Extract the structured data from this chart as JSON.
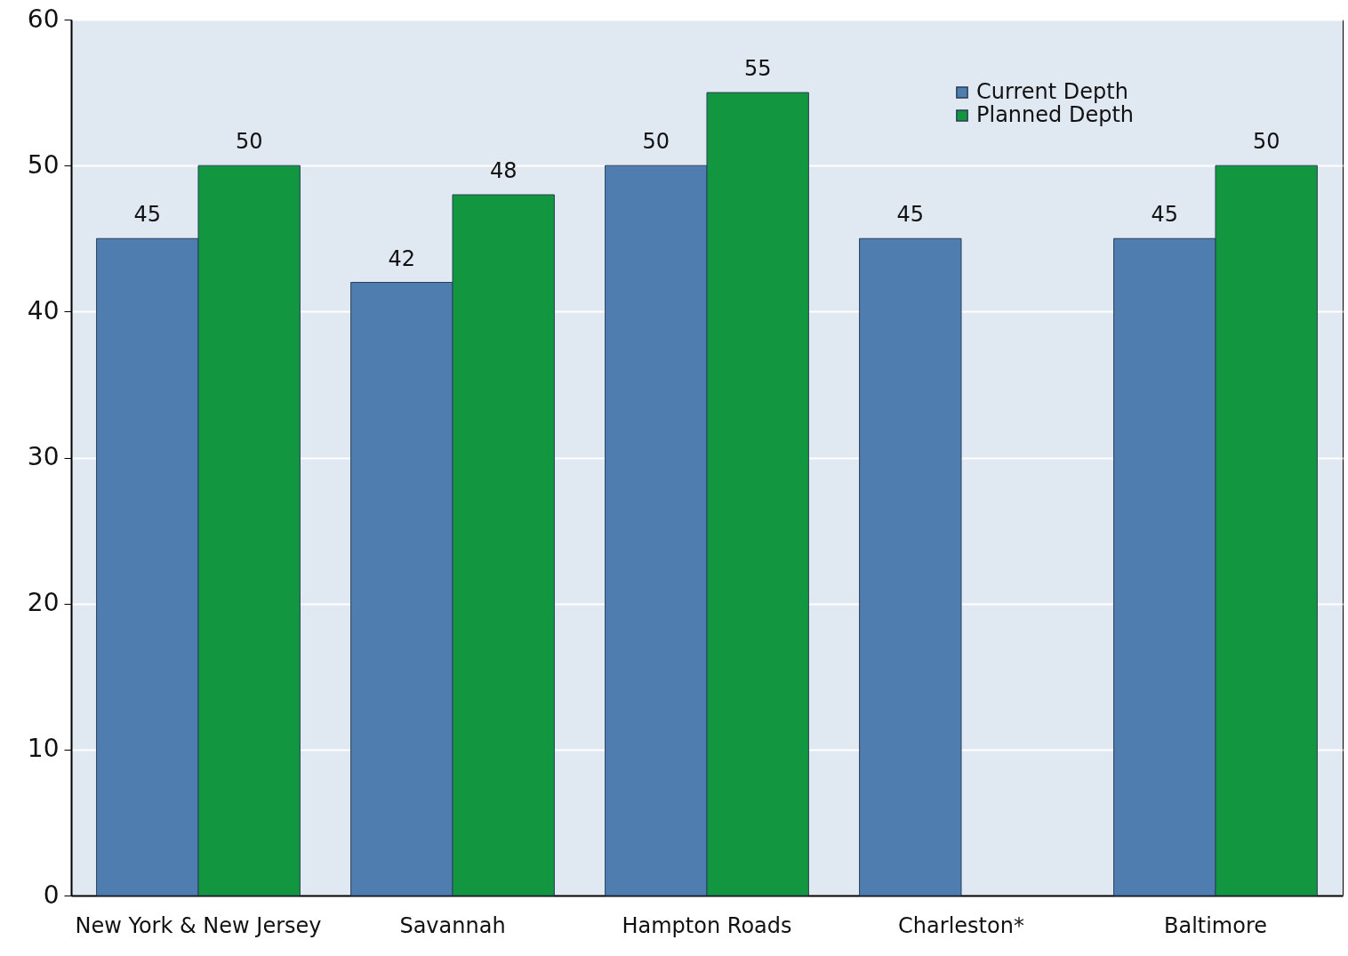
{
  "chart_data": {
    "type": "bar",
    "categories": [
      "New York & New Jersey",
      "Savannah",
      "Hampton Roads",
      "Charleston*",
      "Baltimore"
    ],
    "series": [
      {
        "name": "Current Depth",
        "color": "#4f7db0",
        "values": [
          45,
          42,
          50,
          45,
          45
        ]
      },
      {
        "name": "Planned Depth",
        "color": "#12963f",
        "values": [
          50,
          48,
          55,
          null,
          50
        ]
      }
    ],
    "ylim": [
      0,
      60
    ],
    "yticks": [
      0,
      10,
      20,
      30,
      40,
      50,
      60
    ],
    "grid": "y",
    "legend": "top right",
    "data_labels": true
  }
}
